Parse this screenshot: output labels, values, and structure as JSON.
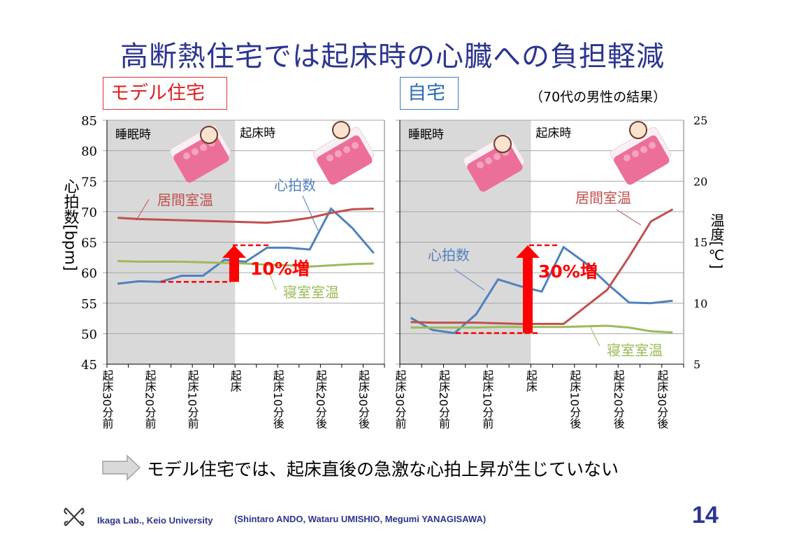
{
  "title": "高断熱住宅では起床時の心臓への負担軽減",
  "note": "（70代の男性の結果）",
  "conclusion": "モデル住宅では、起床直後の急激な心拍上昇が生じていない",
  "footer": {
    "lab": "Ikaga Lab., Keio University",
    "authors": "(Shintaro ANDO, Wataru UMISHIO, Megumi YANAGISAWA)",
    "page": "14"
  },
  "colors": {
    "heart_rate": "#4f81bd",
    "living_temp": "#c0504d",
    "bedroom_temp": "#9bbb59",
    "accent": "#ff0000",
    "title": "#2b3590"
  },
  "icons": [
    "sleeping-girl-icon",
    "waking-girl-icon",
    "right-arrow-icon",
    "keio-logo-icon"
  ],
  "chart_data": [
    {
      "type": "line",
      "title": "モデル住宅",
      "ylabel": "心拍数[bpm]",
      "ylim": [
        45,
        85
      ],
      "yticks": [
        45,
        50,
        55,
        60,
        65,
        70,
        75,
        80,
        85
      ],
      "y2label": "温度[℃]",
      "y2lim": [
        5,
        25
      ],
      "y2ticks": [
        5,
        10,
        15,
        20,
        25
      ],
      "xticklabels": [
        "起床30分前",
        "起床20分前",
        "起床10分前",
        "起床",
        "起床10分後",
        "起床20分後",
        "起床30分後"
      ],
      "phases": [
        "睡眠時",
        "起床時"
      ],
      "grid": true,
      "series": [
        {
          "name": "心拍数",
          "axis": "left",
          "values": [
            58.2,
            58.6,
            58.5,
            59.5,
            59.5,
            62.1,
            61.8,
            64.1,
            64.1,
            63.8,
            70.5,
            67.3,
            63.2
          ]
        },
        {
          "name": "居間室温",
          "axis": "right",
          "values": [
            17.0,
            16.9,
            16.85,
            16.8,
            16.75,
            16.7,
            16.65,
            16.6,
            16.75,
            17.0,
            17.4,
            17.7,
            17.75
          ]
        },
        {
          "name": "寝室室温",
          "axis": "right",
          "values": [
            13.45,
            13.4,
            13.4,
            13.4,
            13.35,
            13.3,
            13.25,
            13.15,
            13.1,
            13.0,
            13.1,
            13.2,
            13.25
          ]
        }
      ],
      "annotation": "10%増"
    },
    {
      "type": "line",
      "title": "自宅",
      "ylabel": "心拍数[bpm]",
      "ylim": [
        45,
        85
      ],
      "yticks": [
        45,
        50,
        55,
        60,
        65,
        70,
        75,
        80,
        85
      ],
      "y2label": "温度[℃]",
      "y2lim": [
        5,
        25
      ],
      "y2ticks": [
        5,
        10,
        15,
        20,
        25
      ],
      "xticklabels": [
        "起床30分前",
        "起床20分前",
        "起床10分前",
        "起床",
        "起床10分後",
        "起床20分後",
        "起床30分後"
      ],
      "phases": [
        "睡眠時",
        "起床時"
      ],
      "grid": true,
      "series": [
        {
          "name": "心拍数",
          "axis": "left",
          "values": [
            52.6,
            50.6,
            50.1,
            53.2,
            58.9,
            57.8,
            56.9,
            64.2,
            61.6,
            58.2,
            55.1,
            55.0,
            55.4
          ]
        },
        {
          "name": "居間室温",
          "axis": "right",
          "values": [
            8.45,
            8.4,
            8.4,
            8.4,
            8.35,
            8.3,
            8.3,
            8.3,
            9.7,
            11.1,
            13.8,
            16.7,
            17.7
          ]
        },
        {
          "name": "寝室室温",
          "axis": "right",
          "values": [
            8.0,
            8.0,
            8.0,
            8.0,
            8.05,
            8.05,
            8.05,
            8.05,
            8.1,
            8.15,
            8.0,
            7.7,
            7.6
          ]
        }
      ],
      "annotation": "30%増"
    }
  ]
}
